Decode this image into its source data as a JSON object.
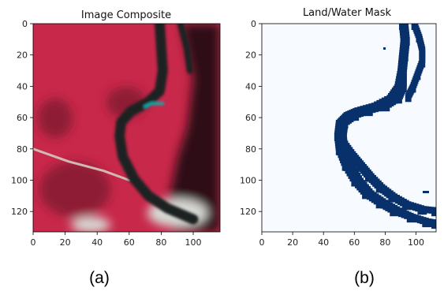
{
  "figure": {
    "panels": [
      {
        "title": "Image Composite",
        "caption": "(a)"
      },
      {
        "title": "Land/Water Mask",
        "caption": "(b)"
      }
    ]
  },
  "colors": {
    "vegetation": "#c8284a",
    "vegetation_dark": "#8e1a35",
    "river_dark": "#1e2124",
    "right_bank": "#2d0c12",
    "cloud": "#d7d9d4",
    "sediment": "#19a9a8",
    "road": "#d0b9b5",
    "mask_land": "#f7fbff",
    "mask_water": "#08306b",
    "axis": "#000000"
  },
  "chart_data": [
    {
      "type": "heatmap",
      "title": "Image Composite",
      "x_ticks": [
        0,
        20,
        40,
        60,
        80,
        100
      ],
      "y_ticks": [
        0,
        20,
        40,
        60,
        80,
        100,
        120
      ],
      "xlim": [
        0,
        117
      ],
      "ylim": [
        133,
        0
      ],
      "grid": false,
      "features": {
        "river_channel_centerline": [
          [
            79,
            0
          ],
          [
            80,
            15
          ],
          [
            81,
            30
          ],
          [
            79,
            43
          ],
          [
            72,
            50
          ],
          [
            61,
            56
          ],
          [
            55,
            63
          ],
          [
            54,
            72
          ],
          [
            56,
            85
          ],
          [
            63,
            99
          ],
          [
            72,
            110
          ],
          [
            84,
            118
          ],
          [
            100,
            125
          ]
        ],
        "side_channel_centerline": [
          [
            92,
            0
          ],
          [
            96,
            15
          ],
          [
            98,
            30
          ]
        ],
        "road": [
          [
            0,
            80
          ],
          [
            22,
            88
          ],
          [
            44,
            94
          ],
          [
            60,
            100
          ]
        ],
        "sediment_plume": [
          [
            70,
            53
          ],
          [
            74,
            51
          ],
          [
            81,
            51
          ]
        ]
      }
    },
    {
      "type": "heatmap",
      "title": "Land/Water Mask",
      "x_ticks": [
        0,
        20,
        40,
        60,
        80,
        100
      ],
      "y_ticks": [
        0,
        20,
        40,
        60,
        80,
        100,
        120
      ],
      "xlim": [
        0,
        113
      ],
      "ylim": [
        133,
        0
      ],
      "grid": false,
      "classes": [
        "land",
        "water"
      ],
      "water_bands": [
        [
          [
            92,
            0,
            3
          ],
          [
            93,
            10,
            3
          ],
          [
            92,
            20,
            3
          ],
          [
            91,
            30,
            3
          ],
          [
            90,
            40,
            4
          ],
          [
            86,
            47,
            5
          ],
          [
            77,
            52,
            6
          ],
          [
            66,
            55,
            6
          ],
          [
            58,
            58,
            5
          ],
          [
            52,
            63,
            4
          ],
          [
            51,
            71,
            4
          ],
          [
            52,
            80,
            4
          ],
          [
            56,
            90,
            4
          ],
          [
            62,
            100,
            4
          ],
          [
            69,
            108,
            4
          ],
          [
            78,
            114,
            4
          ],
          [
            87,
            119,
            4
          ],
          [
            97,
            123,
            3
          ],
          [
            107,
            126,
            3
          ],
          [
            113,
            127,
            3
          ]
        ],
        [
          [
            99,
            0,
            2
          ],
          [
            102,
            8,
            2
          ],
          [
            104,
            16,
            2
          ],
          [
            104,
            24,
            2
          ],
          [
            101,
            32,
            2
          ],
          [
            98,
            40,
            2
          ],
          [
            95,
            46,
            2
          ]
        ],
        [
          [
            52,
            75,
            3
          ],
          [
            58,
            83,
            3
          ],
          [
            64,
            90,
            3
          ],
          [
            70,
            97,
            3
          ],
          [
            77,
            104,
            3
          ],
          [
            85,
            110,
            3
          ],
          [
            94,
            115,
            3
          ],
          [
            104,
            118,
            3
          ],
          [
            113,
            119,
            3
          ]
        ]
      ]
    }
  ]
}
